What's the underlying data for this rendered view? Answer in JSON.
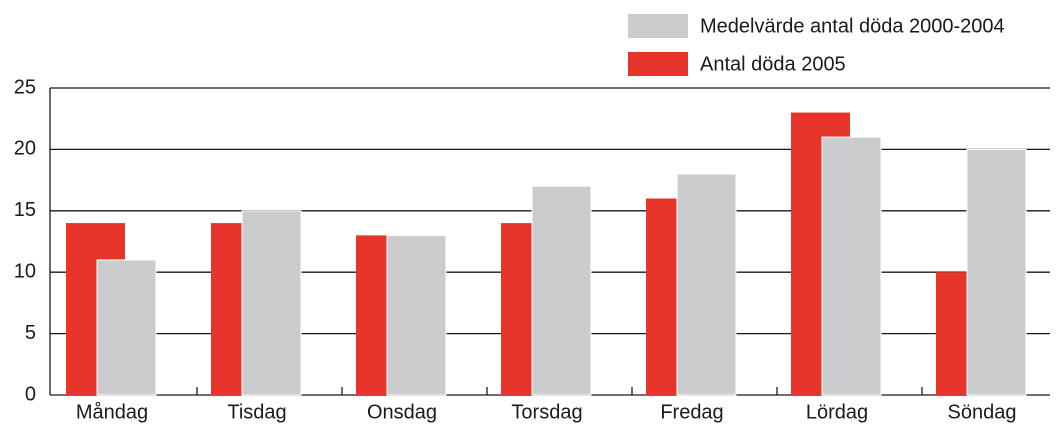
{
  "chart_data": {
    "type": "bar",
    "categories": [
      "Måndag",
      "Tisdag",
      "Onsdag",
      "Torsdag",
      "Fredag",
      "Lördag",
      "Söndag"
    ],
    "series": [
      {
        "name": "Medelvärde antal döda 2000-2004",
        "color": "#cbcccd",
        "values": [
          11,
          15,
          13,
          17,
          18,
          21,
          20
        ]
      },
      {
        "name": "Antal döda 2005",
        "color": "#e8352b",
        "values": [
          14,
          14,
          13,
          14,
          16,
          23,
          10
        ]
      }
    ],
    "ylim": [
      0,
      25
    ],
    "yticks": [
      0,
      5,
      10,
      15,
      20,
      25
    ],
    "grid": true,
    "legend": "top-right"
  }
}
